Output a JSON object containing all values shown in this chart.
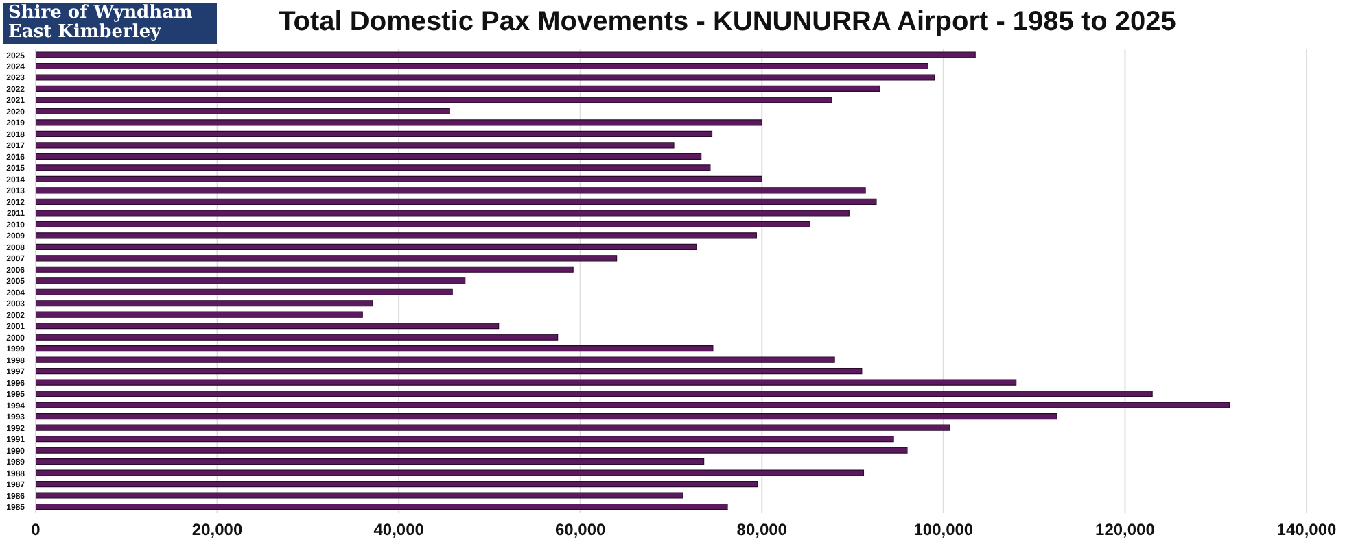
{
  "chart_data": {
    "type": "bar",
    "orientation": "horizontal",
    "title": "Total Domestic Pax Movements - KUNUNURRA Airport - 1985 to 2025",
    "annotations": [
      "Shire of Wyndham East Kimberley"
    ],
    "categories": [
      "2025",
      "2024",
      "2023",
      "2022",
      "2021",
      "2020",
      "2019",
      "2018",
      "2017",
      "2016",
      "2015",
      "2014",
      "2013",
      "2012",
      "2011",
      "2010",
      "2009",
      "2008",
      "2007",
      "2006",
      "2005",
      "2004",
      "2003",
      "2002",
      "2001",
      "2000",
      "1999",
      "1998",
      "1997",
      "1996",
      "1995",
      "1994",
      "1993",
      "1992",
      "1991",
      "1990",
      "1989",
      "1988",
      "1987",
      "1986",
      "1985"
    ],
    "values": [
      103500,
      98300,
      99000,
      93000,
      87700,
      45600,
      80000,
      74500,
      70300,
      73300,
      74300,
      80000,
      91400,
      92600,
      89600,
      85300,
      79400,
      72800,
      64000,
      59200,
      47300,
      45900,
      37100,
      36000,
      51000,
      57500,
      74600,
      88000,
      91000,
      108000,
      123000,
      131500,
      112500,
      100700,
      94500,
      96000,
      73600,
      91200,
      79500,
      71300,
      76200
    ],
    "color": "#5b1a5e",
    "xlim": [
      0,
      140000
    ],
    "xticks": [
      0,
      {
        "value": 20000,
        "label": "20,000"
      },
      {
        "value": 40000,
        "label": "40,000"
      },
      {
        "value": 60000,
        "label": "60,000"
      },
      {
        "value": 80000,
        "label": "80,000"
      },
      {
        "value": 100000,
        "label": "100,000"
      },
      {
        "value": 120000,
        "label": "120,000"
      },
      {
        "value": 140000,
        "label": "140,000"
      }
    ],
    "grid": "x"
  }
}
